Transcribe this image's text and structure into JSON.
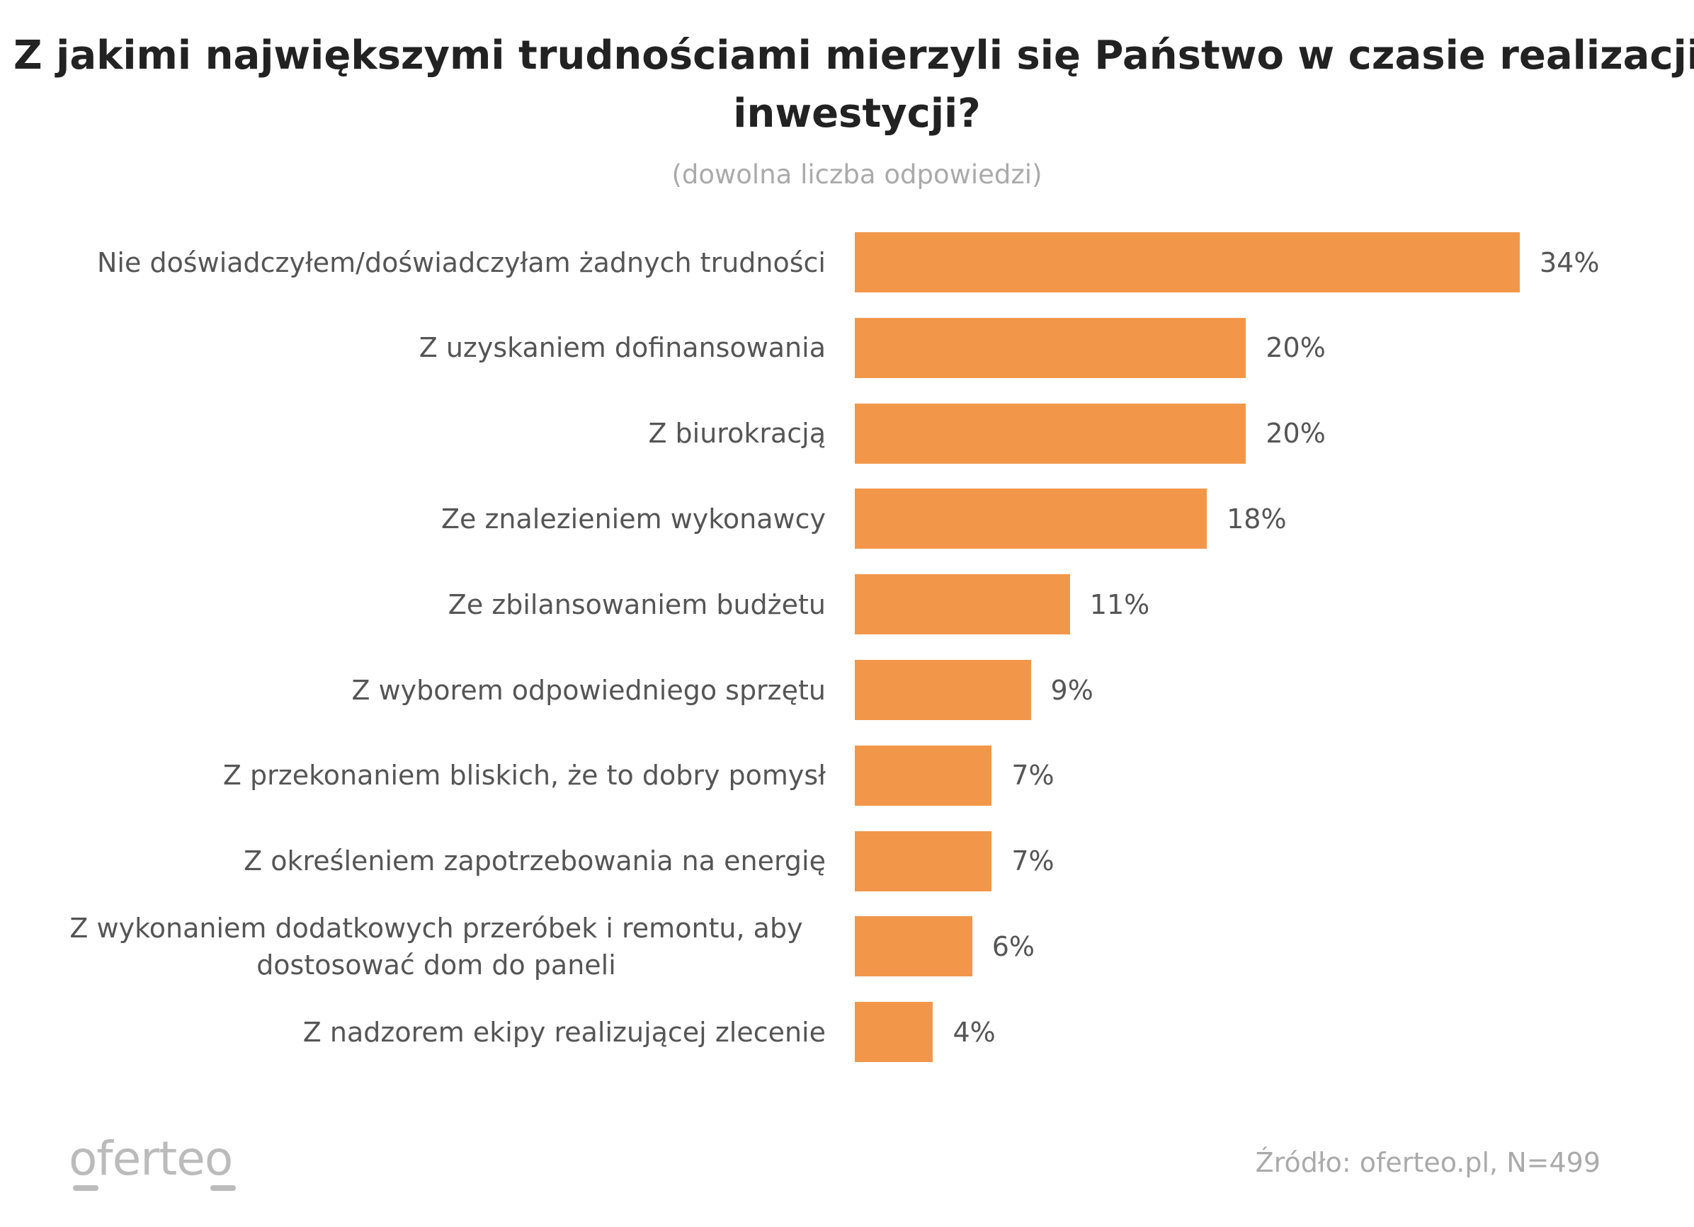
{
  "chart_data": {
    "type": "bar",
    "orientation": "horizontal",
    "title": "Z jakimi największymi trudnościami mierzyli się Państwo w czasie realizacji inwestycji?",
    "subtitle": "(dowolna liczba odpowiedzi)",
    "categories": [
      "Nie doświadczyłem/doświadczyłam żadnych trudności",
      "Z uzyskaniem dofinansowania",
      "Z biurokracją",
      "Ze znalezieniem wykonawcy",
      "Ze zbilansowaniem budżetu",
      "Z wyborem odpowiedniego sprzętu",
      "Z przekonaniem bliskich, że to dobry pomysł",
      "Z określeniem zapotrzebowania na energię",
      "Z wykonaniem dodatkowych przeróbek i remontu, aby dostosować dom do paneli",
      "Z nadzorem ekipy realizującej zlecenie"
    ],
    "values": [
      34,
      20,
      20,
      18,
      11,
      9,
      7,
      7,
      6,
      4
    ],
    "value_labels": [
      "34%",
      "20%",
      "20%",
      "18%",
      "11%",
      "9%",
      "7%",
      "7%",
      "6%",
      "4%"
    ],
    "bar_color": "#F2974A",
    "grid": false,
    "axes_visible": false
  },
  "footer": {
    "logo": "oferteo",
    "source": "Źródło: oferteo.pl, N=499"
  }
}
